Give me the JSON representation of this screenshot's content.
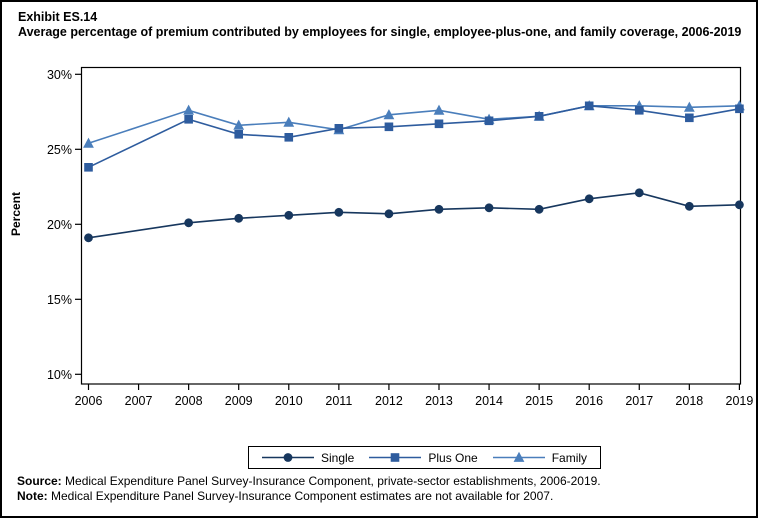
{
  "chart_data": {
    "type": "line",
    "title": "Exhibit ES.14",
    "subtitle": "Average percentage of premium contributed by employees for single, employee-plus-one, and family coverage, 2006-2019",
    "xlabel": "",
    "ylabel": "Percent",
    "ylim": [
      10,
      30
    ],
    "grid": false,
    "legend_position": "bottom-center",
    "yticks": [
      {
        "value": 30,
        "label": "30%"
      },
      {
        "value": 25,
        "label": "25%"
      },
      {
        "value": 20,
        "label": "20%"
      },
      {
        "value": 15,
        "label": "15%"
      },
      {
        "value": 10,
        "label": "10%"
      }
    ],
    "categories": [
      "2006",
      "2007",
      "2008",
      "2009",
      "2010",
      "2011",
      "2012",
      "2013",
      "2014",
      "2015",
      "2016",
      "2017",
      "2018",
      "2019"
    ],
    "missing_data_note": "2007 estimates not available",
    "series": [
      {
        "name": "Single",
        "marker": "circle",
        "color": "#17375E",
        "values": [
          19.1,
          null,
          20.1,
          20.4,
          20.6,
          20.8,
          20.7,
          21.0,
          21.1,
          21.0,
          21.7,
          22.1,
          21.2,
          21.3
        ]
      },
      {
        "name": "Plus One",
        "marker": "square",
        "color": "#2E5C9E",
        "values": [
          23.8,
          null,
          27.0,
          26.0,
          25.8,
          26.4,
          26.5,
          26.7,
          26.9,
          27.2,
          27.9,
          27.6,
          27.1,
          27.7
        ]
      },
      {
        "name": "Family",
        "marker": "triangle",
        "color": "#4A7EBB",
        "values": [
          25.4,
          null,
          27.6,
          26.6,
          26.8,
          26.3,
          27.3,
          27.6,
          27.0,
          27.2,
          27.9,
          27.9,
          27.8,
          27.9
        ]
      }
    ]
  },
  "footer": {
    "source_label": "Source:",
    "source_text": " Medical Expenditure Panel Survey-Insurance Component, private-sector establishments, 2006-2019.",
    "note_label": "Note:",
    "note_text": " Medical Expenditure Panel Survey-Insurance Component estimates are not available for 2007."
  }
}
